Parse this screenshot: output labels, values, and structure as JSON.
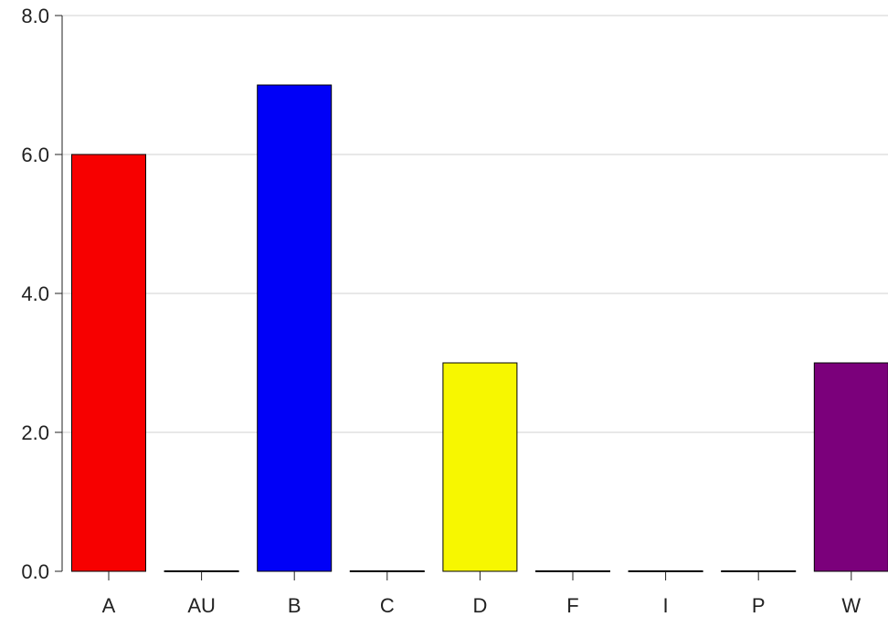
{
  "chart_data": {
    "type": "bar",
    "categories": [
      "A",
      "AU",
      "B",
      "C",
      "D",
      "F",
      "I",
      "P",
      "W"
    ],
    "values": [
      6,
      0,
      7,
      0,
      3,
      0,
      0,
      0,
      3
    ],
    "colors": [
      "#f70000",
      "#000000",
      "#0000f7",
      "#000000",
      "#f7f700",
      "#000000",
      "#000000",
      "#000000",
      "#7b007b"
    ],
    "title": "",
    "xlabel": "",
    "ylabel": "",
    "ylim": [
      0,
      8
    ],
    "yticks": [
      0,
      2,
      4,
      6,
      8
    ],
    "ytick_labels": [
      "0.0",
      "2.0",
      "4.0",
      "6.0",
      "8.0"
    ],
    "grid": true,
    "legend": "none"
  }
}
